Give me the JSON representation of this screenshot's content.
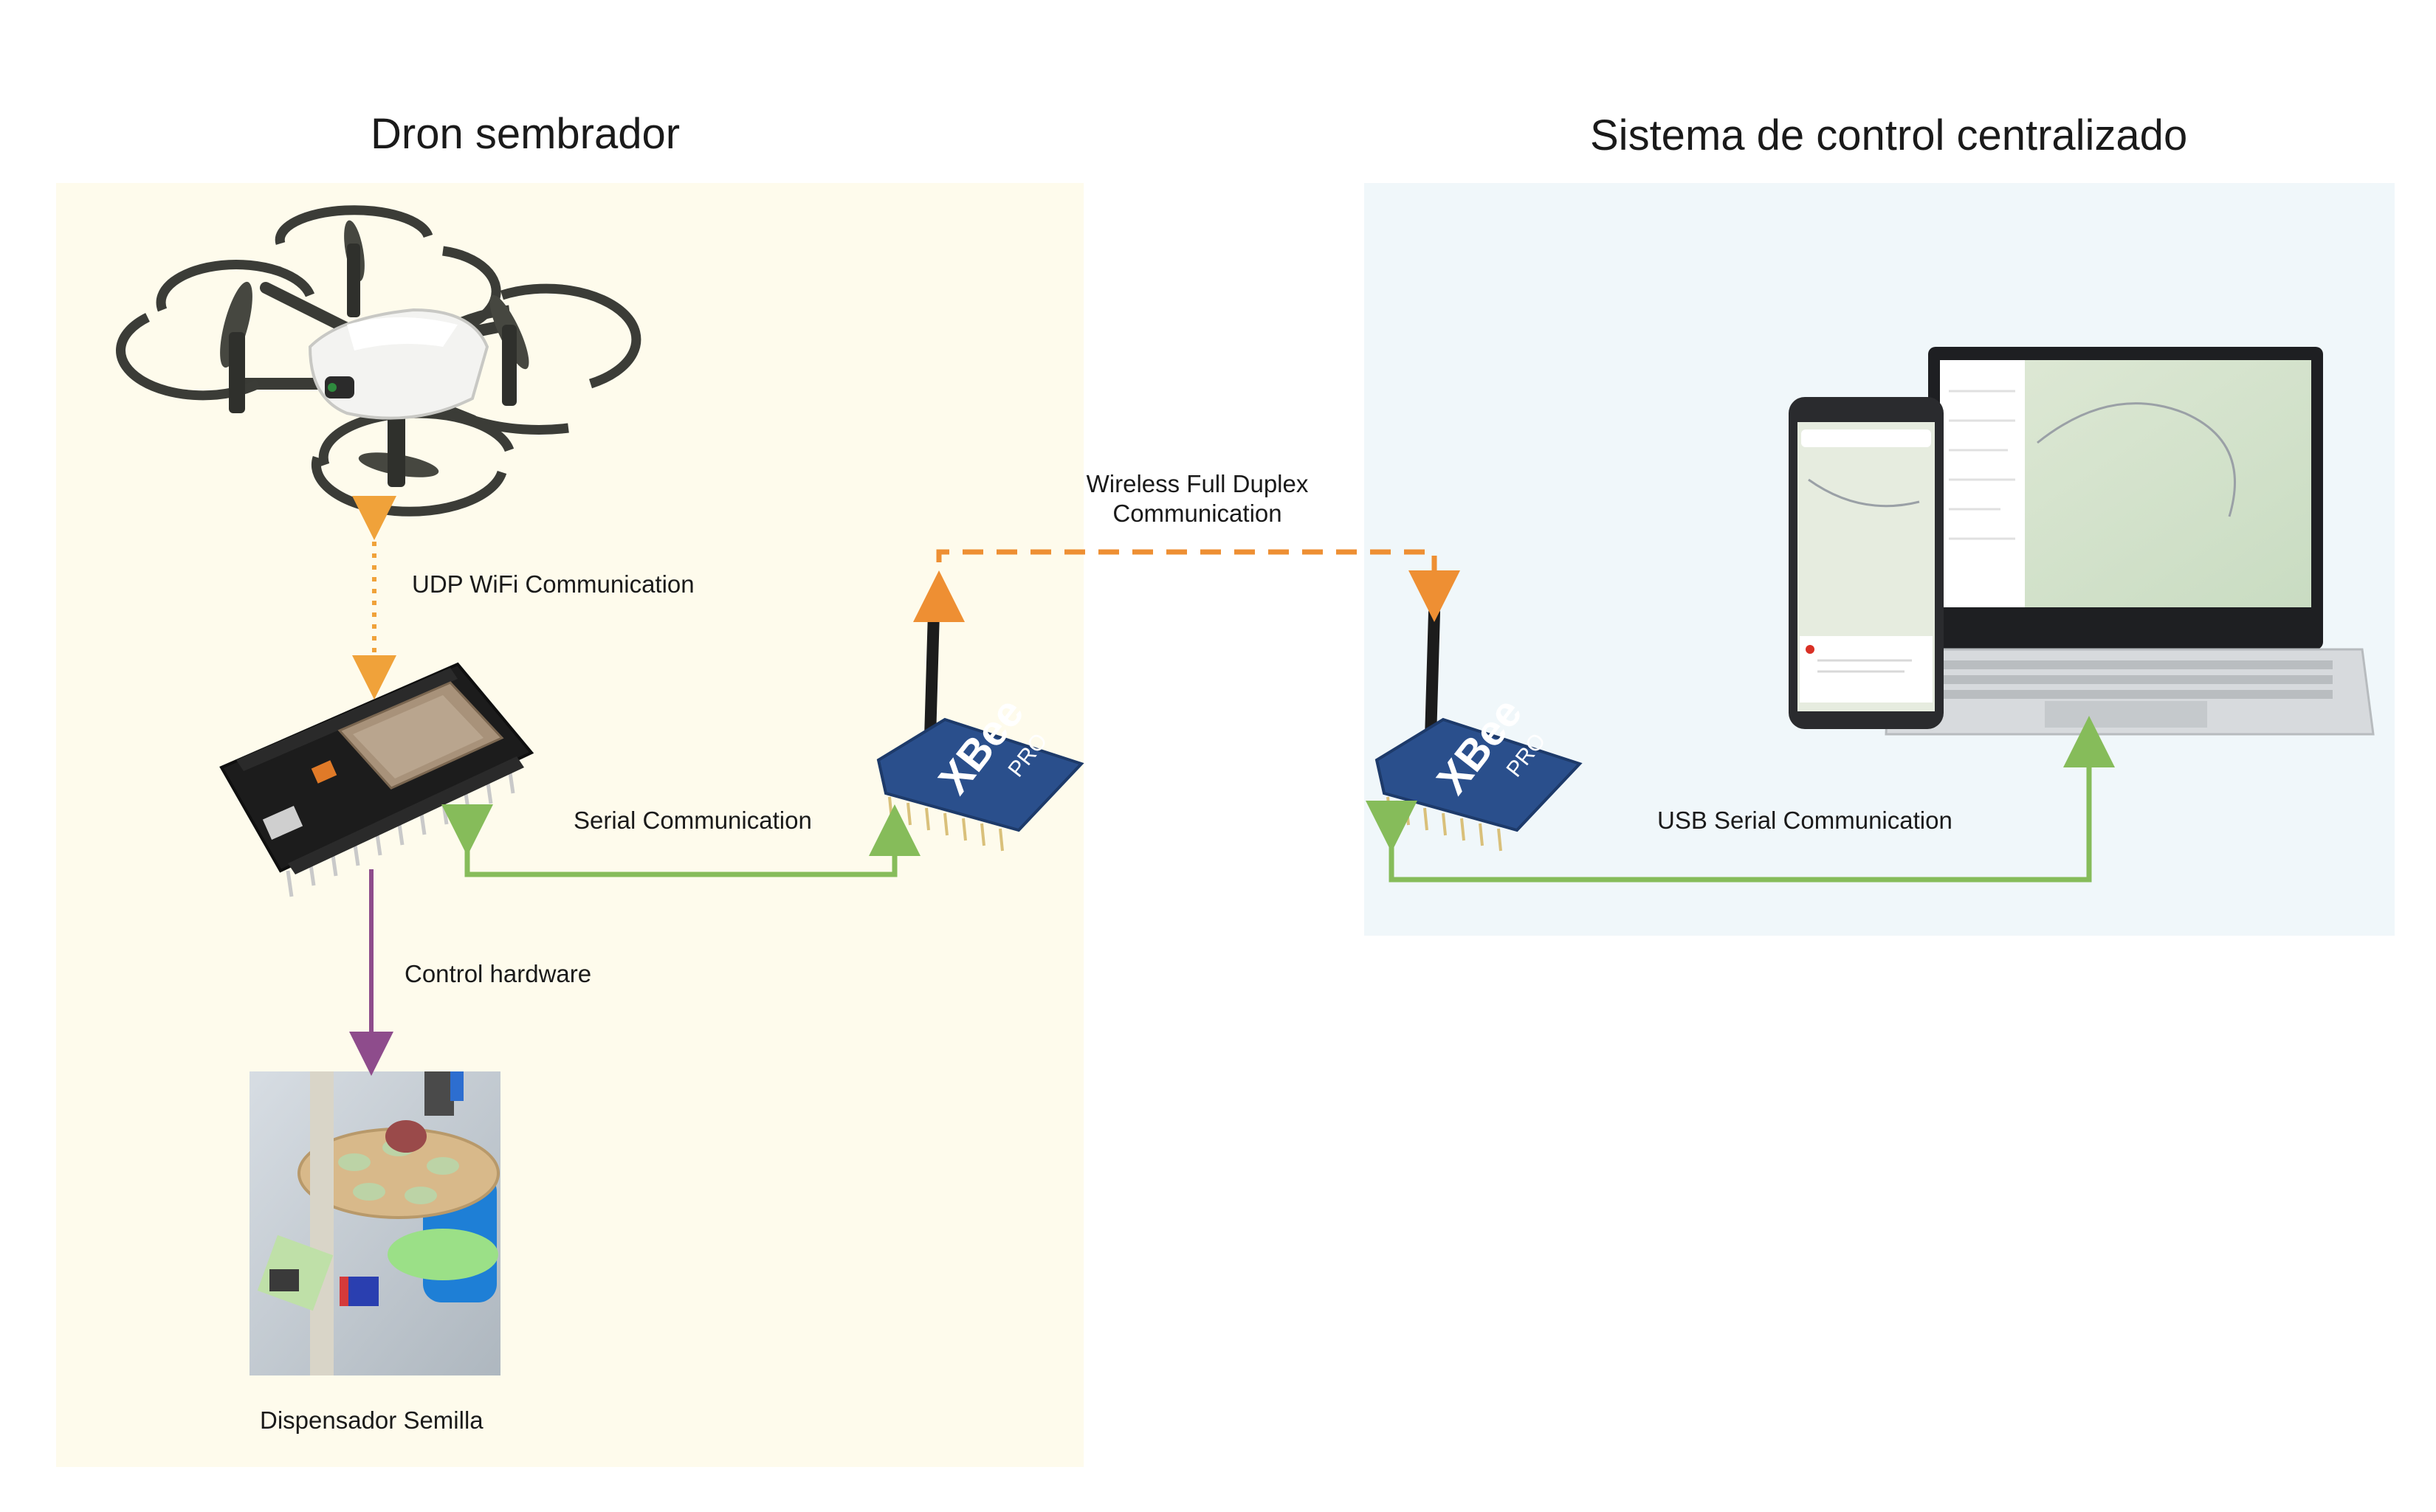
{
  "titles": {
    "left": "Dron sembrador",
    "right": "Sistema de control centralizado"
  },
  "labels": {
    "udp": "UDP WiFi Communication",
    "wireless_line1": "Wireless Full Duplex",
    "wireless_line2": "Communication",
    "serial": "Serial Communication",
    "usb_serial": "USB Serial Communication",
    "control": "Control hardware",
    "dispenser": "Dispensador Semilla"
  },
  "xbee": {
    "brand": "XBee",
    "model": "PRO"
  },
  "colors": {
    "left_panel": "#fefbec",
    "right_panel": "#f0f7fa",
    "wifi_arrow": "#f0a23a",
    "wireless_arrow": "#ee8f33",
    "serial_arrow": "#86bc5a",
    "control_arrow": "#8e4c8c"
  }
}
